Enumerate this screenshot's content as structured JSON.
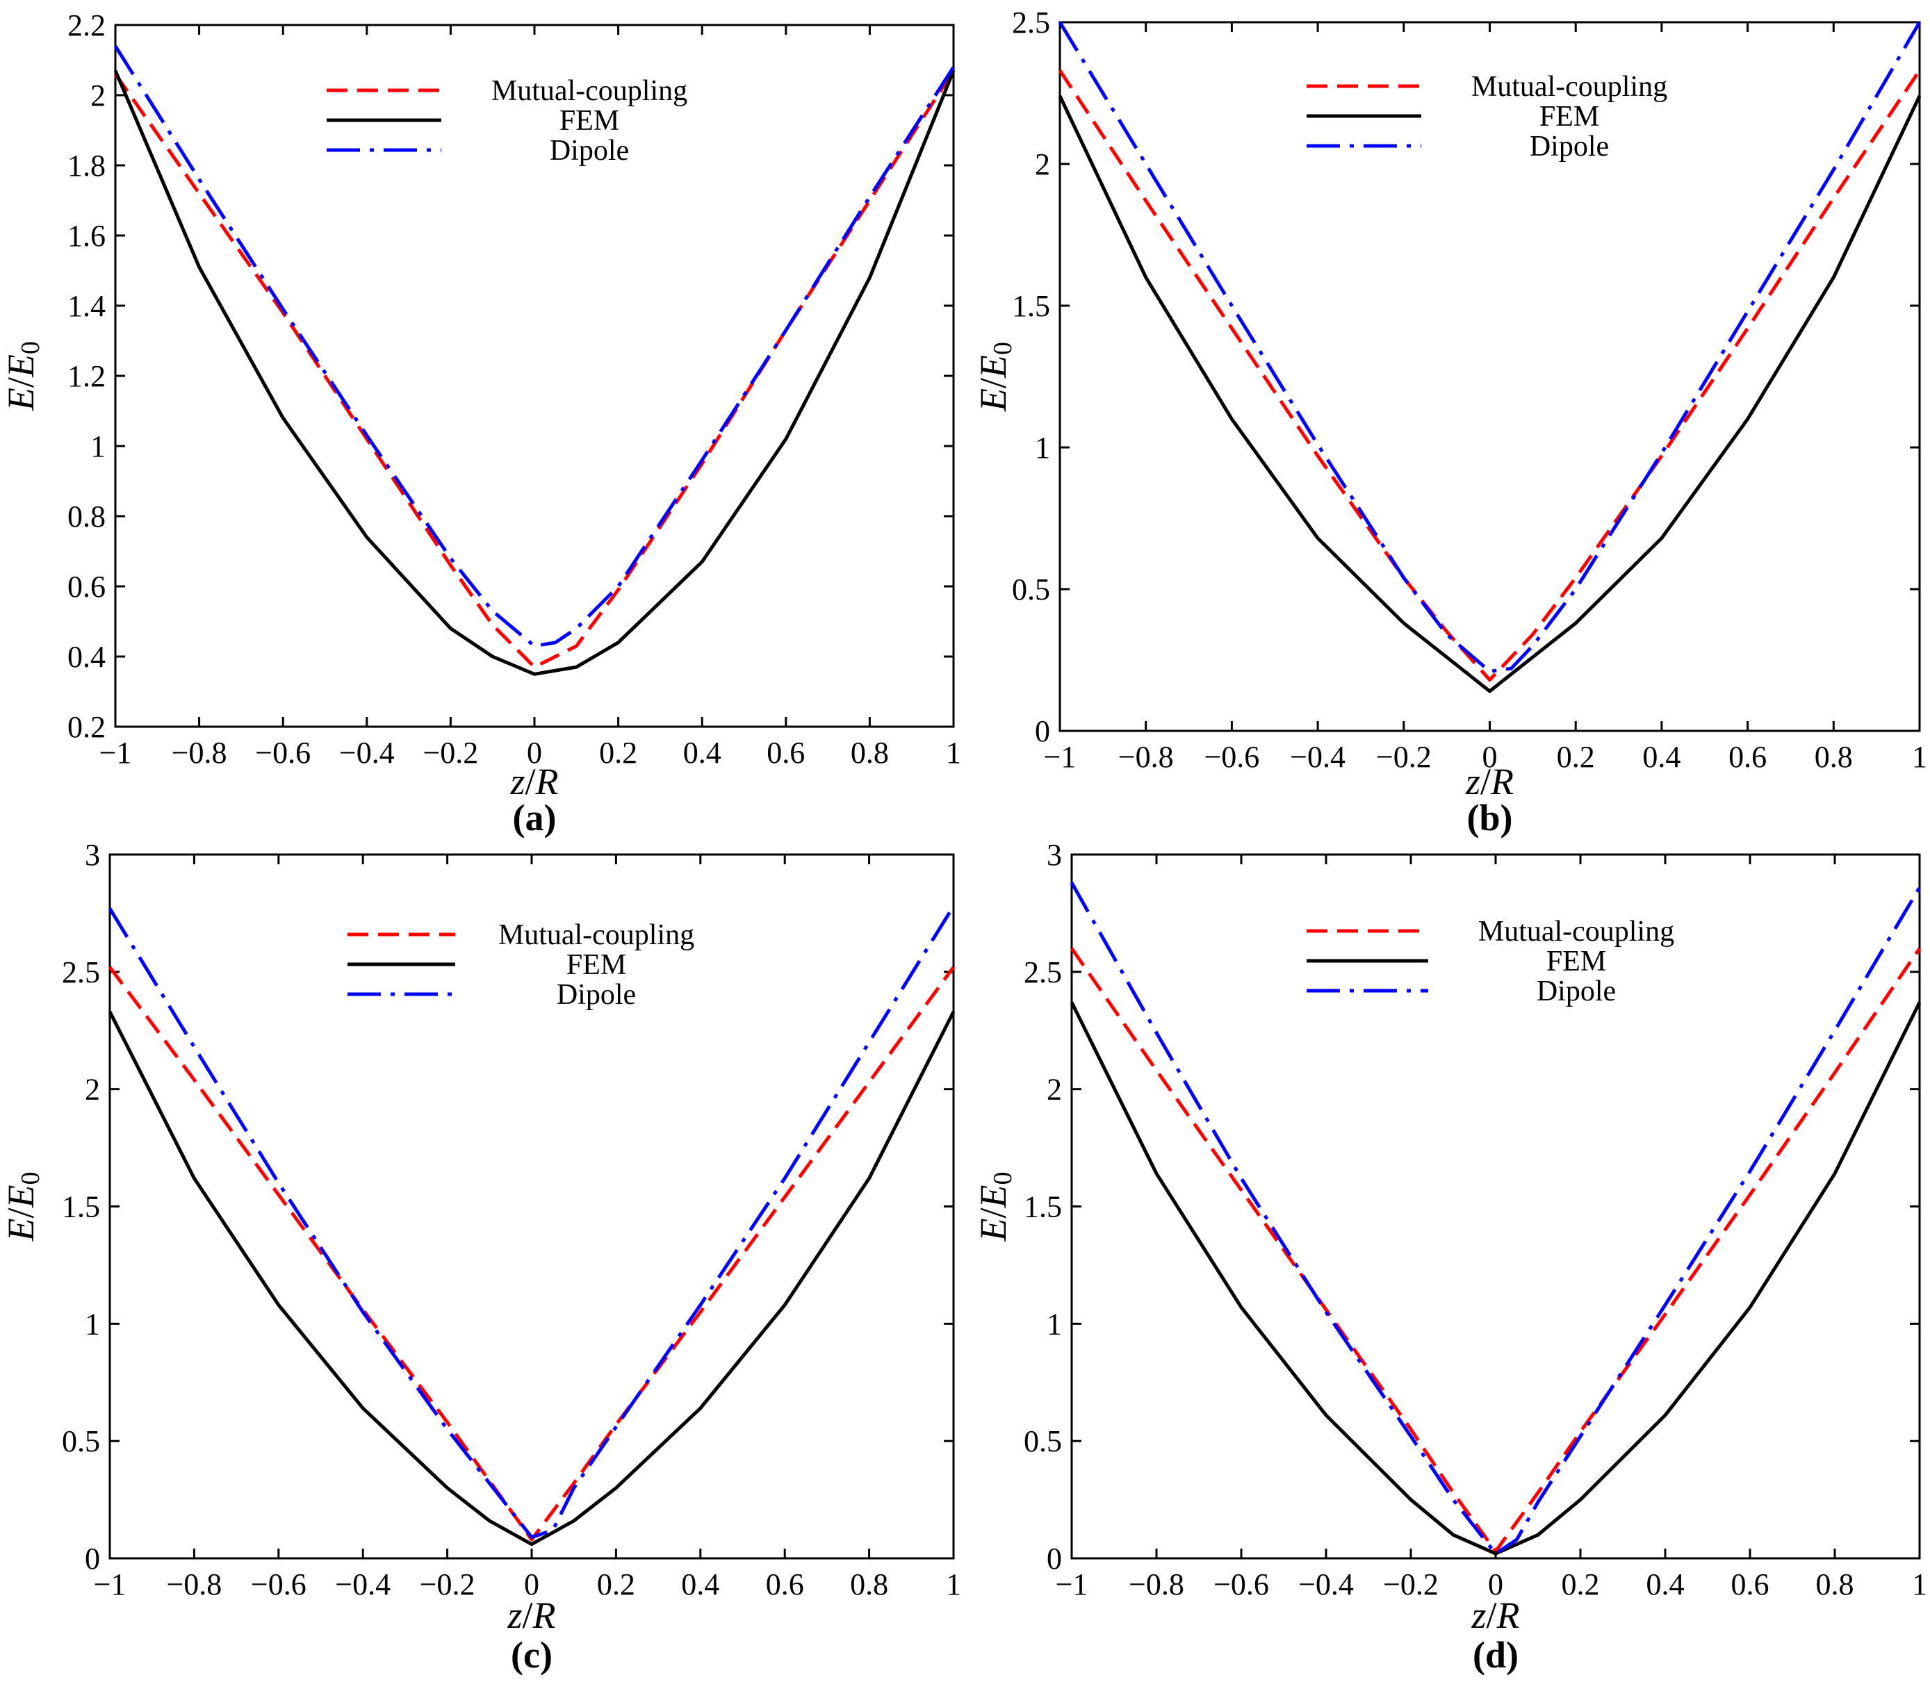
{
  "chart_data": [
    {
      "type": "line",
      "panel_label": "(a)",
      "xlabel": {
        "main": "z",
        "sep": "/",
        "italic2": "R"
      },
      "ylabel": {
        "main": "E",
        "sep": "/",
        "italic2": "E",
        "sub": "0"
      },
      "xlim": [
        -1,
        1
      ],
      "ylim": [
        0.2,
        2.2
      ],
      "xticks": [
        -1,
        -0.8,
        -0.6,
        -0.4,
        -0.2,
        0,
        0.2,
        0.4,
        0.6,
        0.8,
        1
      ],
      "xtick_labels": [
        "−1",
        "−0.8",
        "−0.6",
        "−0.4",
        "−0.2",
        "0",
        "0.2",
        "0.4",
        "0.6",
        "0.8",
        "1"
      ],
      "yticks": [
        0.2,
        0.4,
        0.6,
        0.8,
        1,
        1.2,
        1.4,
        1.6,
        1.8,
        2,
        2.2
      ],
      "ytick_labels": [
        "0.2",
        "0.4",
        "0.6",
        "0.8",
        "1",
        "1.2",
        "1.4",
        "1.6",
        "1.8",
        "2",
        "2.2"
      ],
      "legend_placement": "top-center",
      "series": [
        {
          "name": "Mutual-coupling",
          "style": "dashed",
          "color": "#ff0000",
          "x": [
            -1,
            -0.8,
            -0.6,
            -0.4,
            -0.2,
            -0.1,
            0,
            0.1,
            0.2,
            0.4,
            0.6,
            0.8,
            1
          ],
          "y": [
            2.06,
            1.72,
            1.38,
            1.02,
            0.66,
            0.49,
            0.37,
            0.43,
            0.59,
            0.95,
            1.33,
            1.7,
            2.07
          ]
        },
        {
          "name": "FEM",
          "style": "solid",
          "color": "#000000",
          "x": [
            -1,
            -0.8,
            -0.6,
            -0.4,
            -0.2,
            -0.1,
            0,
            0.1,
            0.2,
            0.4,
            0.6,
            0.8,
            1
          ],
          "y": [
            2.07,
            1.51,
            1.08,
            0.74,
            0.48,
            0.4,
            0.35,
            0.37,
            0.44,
            0.67,
            1.02,
            1.48,
            2.07
          ]
        },
        {
          "name": "Dipole",
          "style": "dashdot",
          "color": "#0000ff",
          "x": [
            -1,
            -0.8,
            -0.6,
            -0.4,
            -0.2,
            -0.1,
            0,
            0.05,
            0.1,
            0.2,
            0.4,
            0.6,
            0.8,
            1
          ],
          "y": [
            2.14,
            1.76,
            1.39,
            1.03,
            0.68,
            0.53,
            0.43,
            0.44,
            0.48,
            0.6,
            0.96,
            1.33,
            1.71,
            2.08
          ]
        }
      ]
    },
    {
      "type": "line",
      "panel_label": "(b)",
      "xlabel": {
        "main": "z",
        "sep": "/",
        "italic2": "R"
      },
      "ylabel": {
        "main": "E",
        "sep": "/",
        "italic2": "E",
        "sub": "0"
      },
      "xlim": [
        -1,
        1
      ],
      "ylim": [
        0,
        2.5
      ],
      "xticks": [
        -1,
        -0.8,
        -0.6,
        -0.4,
        -0.2,
        0,
        0.2,
        0.4,
        0.6,
        0.8,
        1
      ],
      "xtick_labels": [
        "−1",
        "−0.8",
        "−0.6",
        "−0.4",
        "−0.2",
        "0",
        "0.2",
        "0.4",
        "0.6",
        "0.8",
        "1"
      ],
      "yticks": [
        0,
        0.5,
        1,
        1.5,
        2,
        2.5
      ],
      "ytick_labels": [
        "0",
        "0.5",
        "1",
        "1.5",
        "2",
        "2.5"
      ],
      "legend_placement": "top-center",
      "series": [
        {
          "name": "Mutual-coupling",
          "style": "dashed",
          "color": "#ff0000",
          "x": [
            -1,
            -0.8,
            -0.6,
            -0.4,
            -0.2,
            -0.1,
            0,
            0.1,
            0.2,
            0.4,
            0.6,
            0.8,
            1
          ],
          "y": [
            2.33,
            1.87,
            1.42,
            0.97,
            0.54,
            0.35,
            0.18,
            0.34,
            0.54,
            0.97,
            1.42,
            1.88,
            2.33
          ]
        },
        {
          "name": "FEM",
          "style": "solid",
          "color": "#000000",
          "x": [
            -1,
            -0.8,
            -0.6,
            -0.4,
            -0.2,
            -0.1,
            0,
            0.1,
            0.2,
            0.4,
            0.6,
            0.8,
            1
          ],
          "y": [
            2.24,
            1.6,
            1.1,
            0.68,
            0.38,
            0.26,
            0.14,
            0.26,
            0.38,
            0.68,
            1.1,
            1.6,
            2.24
          ]
        },
        {
          "name": "Dipole",
          "style": "dashdot",
          "color": "#0000ff",
          "x": [
            -1,
            -0.8,
            -0.6,
            -0.4,
            -0.2,
            -0.1,
            0,
            0.05,
            0.1,
            0.2,
            0.4,
            0.6,
            0.8,
            1
          ],
          "y": [
            2.5,
            2.0,
            1.5,
            1.01,
            0.54,
            0.34,
            0.21,
            0.22,
            0.3,
            0.5,
            0.98,
            1.48,
            1.98,
            2.5
          ]
        }
      ]
    },
    {
      "type": "line",
      "panel_label": "(c)",
      "xlabel": {
        "main": "z",
        "sep": "/",
        "italic2": "R"
      },
      "ylabel": {
        "main": "E",
        "sep": "/",
        "italic2": "E",
        "sub": "0"
      },
      "xlim": [
        -1,
        1
      ],
      "ylim": [
        0,
        3
      ],
      "xticks": [
        -1,
        -0.8,
        -0.6,
        -0.4,
        -0.2,
        0,
        0.2,
        0.4,
        0.6,
        0.8,
        1
      ],
      "xtick_labels": [
        "−1",
        "−0.8",
        "−0.6",
        "−0.4",
        "−0.2",
        "0",
        "0.2",
        "0.4",
        "0.6",
        "0.8",
        "1"
      ],
      "yticks": [
        0,
        0.5,
        1,
        1.5,
        2,
        2.5,
        3
      ],
      "ytick_labels": [
        "0",
        "0.5",
        "1",
        "1.5",
        "2",
        "2.5",
        "3"
      ],
      "legend_placement": "top-center",
      "series": [
        {
          "name": "Mutual-coupling",
          "style": "dashed",
          "color": "#ff0000",
          "x": [
            -1,
            -0.8,
            -0.6,
            -0.4,
            -0.2,
            -0.1,
            0,
            0.1,
            0.2,
            0.4,
            0.6,
            0.8,
            1
          ],
          "y": [
            2.52,
            2.04,
            1.55,
            1.06,
            0.58,
            0.33,
            0.08,
            0.32,
            0.57,
            1.05,
            1.54,
            2.03,
            2.52
          ]
        },
        {
          "name": "FEM",
          "style": "solid",
          "color": "#000000",
          "x": [
            -1,
            -0.8,
            -0.6,
            -0.4,
            -0.2,
            -0.1,
            0,
            0.1,
            0.2,
            0.4,
            0.6,
            0.8,
            1
          ],
          "y": [
            2.33,
            1.62,
            1.08,
            0.64,
            0.3,
            0.16,
            0.06,
            0.16,
            0.3,
            0.64,
            1.08,
            1.62,
            2.33
          ]
        },
        {
          "name": "Dipole",
          "style": "dashdot",
          "color": "#0000ff",
          "x": [
            -1,
            -0.8,
            -0.6,
            -0.4,
            -0.2,
            -0.1,
            0,
            0.05,
            0.1,
            0.2,
            0.4,
            0.6,
            0.8,
            1
          ],
          "y": [
            2.77,
            2.18,
            1.6,
            1.05,
            0.55,
            0.32,
            0.09,
            0.12,
            0.3,
            0.56,
            1.08,
            1.62,
            2.2,
            2.78
          ]
        }
      ]
    },
    {
      "type": "line",
      "panel_label": "(d)",
      "xlabel": {
        "main": "z",
        "sep": "/",
        "italic2": "R"
      },
      "ylabel": {
        "main": "E",
        "sep": "/",
        "italic2": "E",
        "sub": "0"
      },
      "xlim": [
        -1,
        1
      ],
      "ylim": [
        0,
        3
      ],
      "xticks": [
        -1,
        -0.8,
        -0.6,
        -0.4,
        -0.2,
        0,
        0.2,
        0.4,
        0.6,
        0.8,
        1
      ],
      "xtick_labels": [
        "−1",
        "−0.8",
        "−0.6",
        "−0.4",
        "−0.2",
        "0",
        "0.2",
        "0.4",
        "0.6",
        "0.8",
        "1"
      ],
      "yticks": [
        0,
        0.5,
        1,
        1.5,
        2,
        2.5,
        3
      ],
      "ytick_labels": [
        "0",
        "0.5",
        "1",
        "1.5",
        "2",
        "2.5",
        "3"
      ],
      "legend_placement": "top-center",
      "series": [
        {
          "name": "Mutual-coupling",
          "style": "dashed",
          "color": "#ff0000",
          "x": [
            -1,
            -0.8,
            -0.6,
            -0.4,
            -0.2,
            -0.1,
            0,
            0.1,
            0.2,
            0.4,
            0.6,
            0.8,
            1
          ],
          "y": [
            2.6,
            2.08,
            1.57,
            1.06,
            0.55,
            0.28,
            0.03,
            0.28,
            0.54,
            1.04,
            1.55,
            2.07,
            2.6
          ]
        },
        {
          "name": "FEM",
          "style": "solid",
          "color": "#000000",
          "x": [
            -1,
            -0.8,
            -0.6,
            -0.4,
            -0.2,
            -0.1,
            0,
            0.1,
            0.2,
            0.4,
            0.6,
            0.8,
            1
          ],
          "y": [
            2.37,
            1.64,
            1.07,
            0.61,
            0.25,
            0.1,
            0.02,
            0.1,
            0.25,
            0.61,
            1.07,
            1.64,
            2.37
          ]
        },
        {
          "name": "Dipole",
          "style": "dashdot",
          "color": "#0000ff",
          "x": [
            -1,
            -0.8,
            -0.6,
            -0.4,
            -0.2,
            -0.1,
            0,
            0.05,
            0.1,
            0.2,
            0.4,
            0.6,
            0.8,
            1
          ],
          "y": [
            2.88,
            2.24,
            1.62,
            1.05,
            0.52,
            0.25,
            0.02,
            0.08,
            0.24,
            0.52,
            1.08,
            1.65,
            2.25,
            2.86
          ]
        }
      ]
    }
  ]
}
